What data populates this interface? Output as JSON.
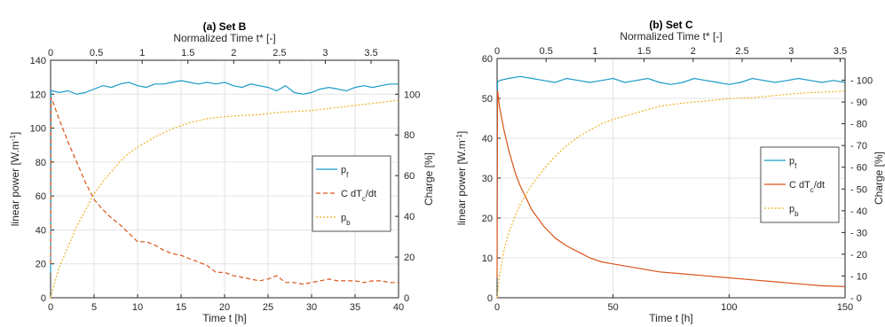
{
  "chart_data": [
    {
      "type": "line",
      "title": "(a) Set B",
      "xlabel": "Time t [h]",
      "x2label": "Normalized Time t* [-]",
      "ylabel": "linear power [W.m",
      "ylabel_sup": "-1",
      "ylabel_end": "]",
      "y2label": "Charge [%]",
      "xlim": [
        0,
        40
      ],
      "ylim": [
        0,
        140
      ],
      "y2lim": [
        0,
        116.67
      ],
      "x2lim": [
        0,
        3.8
      ],
      "xticks": [
        "0",
        "5",
        "10",
        "15",
        "20",
        "25",
        "30",
        "35",
        "40"
      ],
      "yticks": [
        "0",
        "20",
        "40",
        "60",
        "80",
        "100",
        "120",
        "140"
      ],
      "y2ticks": [
        "0",
        "20",
        "40",
        "60",
        "80",
        "100"
      ],
      "x2ticks": [
        "0",
        "0.5",
        "1",
        "1.5",
        "2",
        "2.5",
        "3",
        "3.5"
      ],
      "grid": true,
      "legend_position": "right",
      "series": [
        {
          "name": "p",
          "name_sub": "f",
          "name_tail": "",
          "color": "#1a9bc7",
          "dash": "solid",
          "axis": "left",
          "x": [
            0,
            0.05,
            0.2,
            1,
            2,
            3,
            4,
            5,
            6,
            7,
            8,
            9,
            10,
            11,
            12,
            13,
            14,
            15,
            16,
            17,
            18,
            19,
            20,
            21,
            22,
            23,
            24,
            25,
            26,
            27,
            28,
            29,
            30,
            31,
            32,
            33,
            34,
            35,
            36,
            37,
            38,
            39,
            40
          ],
          "y": [
            15,
            122,
            122,
            121,
            122,
            120,
            121,
            123,
            125,
            124,
            126,
            127,
            125,
            124,
            126,
            126,
            127,
            128,
            127,
            126,
            127,
            126,
            127,
            125,
            124,
            126,
            125,
            124,
            122,
            125,
            121,
            120,
            121,
            123,
            124,
            123,
            122,
            124,
            125,
            124,
            125,
            126,
            126
          ]
        },
        {
          "name": "C dT",
          "name_sub": "c",
          "name_tail": "/dt",
          "color": "#d95319",
          "dash": "5,3",
          "axis": "left",
          "x": [
            0,
            0.05,
            0.3,
            1,
            2,
            3,
            4,
            5,
            6,
            7,
            8,
            9,
            10,
            11,
            12,
            13,
            14,
            15,
            16,
            17,
            18,
            19,
            20,
            21,
            22,
            23,
            24,
            25,
            26,
            27,
            28,
            29,
            30,
            31,
            32,
            33,
            34,
            35,
            36,
            37,
            38,
            39,
            40
          ],
          "y": [
            20,
            118,
            115,
            105,
            92,
            80,
            68,
            58,
            52,
            47,
            43,
            38,
            33,
            33,
            31,
            28,
            26,
            25,
            23,
            21,
            19,
            15,
            15,
            13,
            12,
            11,
            10,
            11,
            13,
            9,
            9,
            8,
            9,
            10,
            11,
            10,
            10,
            10,
            9,
            10,
            10,
            9,
            9
          ]
        },
        {
          "name": "p",
          "name_sub": "b",
          "name_tail": "",
          "color": "#edb120",
          "dash": "2,2",
          "axis": "right",
          "x": [
            0,
            0.5,
            1,
            2,
            3,
            4,
            5,
            6,
            7,
            8,
            9,
            10,
            12,
            14,
            16,
            18,
            20,
            22,
            24,
            26,
            28,
            30,
            32,
            34,
            36,
            38,
            40
          ],
          "y": [
            0,
            8,
            15,
            25,
            35,
            43,
            51,
            57,
            62,
            67,
            71,
            74,
            79,
            83,
            86,
            88,
            89,
            89.5,
            90,
            91,
            91.5,
            92,
            93,
            94,
            95,
            96,
            97
          ]
        }
      ]
    },
    {
      "type": "line",
      "title": "(b) Set C",
      "xlabel": "Time t [h]",
      "x2label": "Normalized Time t* [-]",
      "ylabel": "linear power [W.m",
      "ylabel_sup": "-1",
      "ylabel_end": "]",
      "y2label": "Charge [%]",
      "xlim": [
        0,
        150
      ],
      "ylim": [
        0,
        60
      ],
      "y2lim": [
        0,
        110
      ],
      "x2lim": [
        0,
        3.55
      ],
      "xticks": [
        "0",
        "50",
        "100",
        "150"
      ],
      "yticks": [
        "0",
        "10",
        "20",
        "30",
        "40",
        "50",
        "60"
      ],
      "y2ticks": [
        "0",
        "10",
        "20",
        "30",
        "40",
        "50",
        "60",
        "70",
        "80",
        "90",
        "100"
      ],
      "x2ticks": [
        "0",
        "0.5",
        "1",
        "1.5",
        "2",
        "2.5",
        "3",
        "3.5"
      ],
      "grid": true,
      "legend_position": "right",
      "series": [
        {
          "name": "p",
          "name_sub": "f",
          "name_tail": "",
          "color": "#1a9bc7",
          "dash": "solid",
          "axis": "left",
          "x": [
            0,
            0.2,
            1,
            5,
            10,
            15,
            20,
            25,
            30,
            35,
            40,
            45,
            50,
            55,
            60,
            65,
            70,
            75,
            80,
            85,
            90,
            95,
            100,
            105,
            110,
            115,
            120,
            125,
            130,
            135,
            140,
            145,
            150
          ],
          "y": [
            20,
            54,
            54.5,
            55,
            55.5,
            55,
            54.5,
            54,
            55,
            54.5,
            54,
            54.5,
            55,
            54,
            54.5,
            55,
            54,
            53.5,
            54,
            55,
            54.5,
            54,
            53.5,
            54,
            55,
            54.5,
            54,
            54.5,
            55,
            54.5,
            54,
            54.5,
            54
          ]
        },
        {
          "name": "C dT",
          "name_sub": "c",
          "name_tail": "/dt",
          "color": "#d95319",
          "dash": "solid",
          "axis": "left",
          "x": [
            0,
            0.2,
            1,
            3,
            5,
            8,
            10,
            15,
            20,
            25,
            30,
            35,
            40,
            45,
            50,
            60,
            70,
            80,
            90,
            100,
            110,
            120,
            130,
            140,
            150
          ],
          "y": [
            5,
            52,
            48,
            42,
            37,
            31,
            28,
            22,
            18,
            15,
            13,
            11.5,
            10,
            9,
            8.5,
            7.5,
            6.5,
            6,
            5.5,
            5,
            4.5,
            4,
            3.5,
            3,
            2.8
          ]
        },
        {
          "name": "p",
          "name_sub": "b",
          "name_tail": "",
          "color": "#edb120",
          "dash": "2,2",
          "axis": "right",
          "x": [
            0,
            1,
            3,
            5,
            8,
            10,
            15,
            20,
            25,
            30,
            35,
            40,
            45,
            50,
            60,
            70,
            80,
            90,
            100,
            110,
            120,
            130,
            140,
            150
          ],
          "y": [
            0,
            10,
            22,
            30,
            38,
            43,
            52,
            59,
            65,
            70,
            74,
            77,
            80,
            82,
            85,
            88,
            89.5,
            90.5,
            91.5,
            92,
            93,
            94,
            94.5,
            95
          ]
        }
      ]
    }
  ]
}
